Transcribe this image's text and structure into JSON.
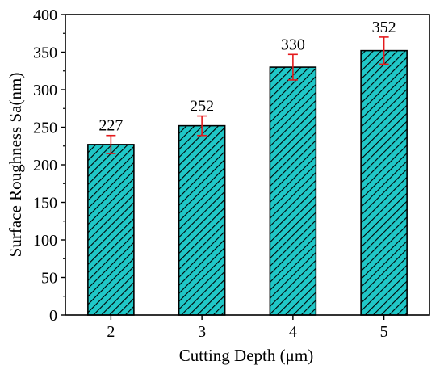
{
  "chart_data": {
    "type": "bar",
    "categories": [
      "2",
      "3",
      "4",
      "5"
    ],
    "values": [
      227,
      252,
      330,
      352
    ],
    "errors": [
      12,
      13,
      17,
      18
    ],
    "data_labels": [
      "227",
      "252",
      "330",
      "352"
    ],
    "title": "",
    "xlabel": "Cutting Depth (μm)",
    "ylabel": "Surface Roughness Sa(nm)",
    "ylim": [
      0,
      400
    ],
    "yticks": [
      0,
      50,
      100,
      150,
      200,
      250,
      300,
      350,
      400
    ],
    "ytick_labels": [
      "0",
      "50",
      "100",
      "150",
      "200",
      "250",
      "300",
      "350",
      "400"
    ],
    "grid": false,
    "bar_color": "#20c7c7",
    "bar_hatch": "diagonal",
    "error_bar_color": "#e41a1c",
    "edge_color": "#000000"
  }
}
